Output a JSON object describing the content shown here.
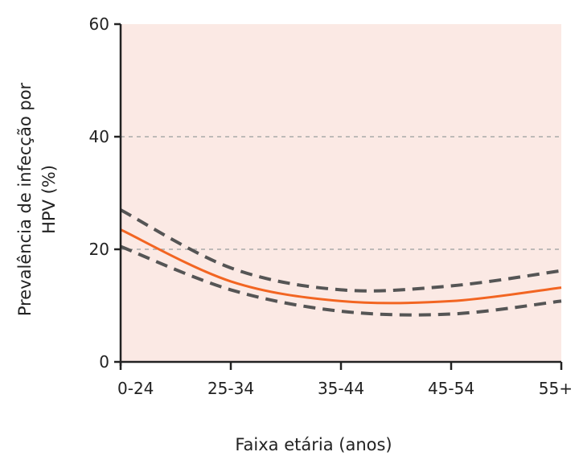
{
  "chart_data": {
    "type": "line",
    "title": "",
    "xlabel": "Faixa etária (anos)",
    "ylabel_lines": [
      "Prevalência de infecção por",
      "HPV (%)"
    ],
    "categories": [
      "0-24",
      "25-34",
      "35-44",
      "45-54",
      "55+"
    ],
    "ylim": [
      0,
      60
    ],
    "yticks": [
      0,
      20,
      40,
      60
    ],
    "grid": {
      "y_dashed_at": [
        20,
        40
      ]
    },
    "plot_background": "#fbe9e4",
    "series": [
      {
        "role": "estimate",
        "style": "solid",
        "color": "#f26522",
        "values": [
          23.5,
          14.3,
          10.8,
          10.8,
          13.2
        ]
      },
      {
        "role": "upper-bound",
        "style": "dashed",
        "color": "#555555",
        "values": [
          27,
          16.7,
          12.8,
          13.5,
          16.2
        ]
      },
      {
        "role": "lower-bound",
        "style": "dashed",
        "color": "#555555",
        "values": [
          20.5,
          12.8,
          9,
          8.5,
          10.8
        ]
      }
    ]
  }
}
